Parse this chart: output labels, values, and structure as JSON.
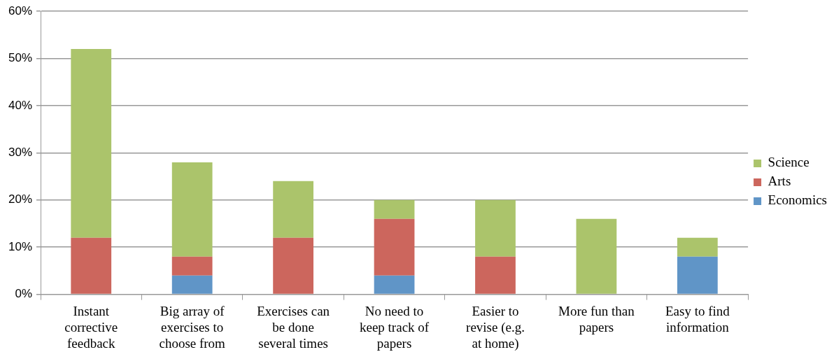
{
  "chart_data": {
    "type": "bar",
    "stacked": true,
    "categories": [
      "Instant corrective feedback",
      "Big array of exercises to choose from",
      "Exercises can be done several times",
      "No need to keep track of papers",
      "Easier to revise (e.g. at home)",
      "More fun than papers",
      "Easy to find information"
    ],
    "series": [
      {
        "name": "Economics",
        "color": "#6095c7",
        "values": [
          0,
          4,
          0,
          4,
          0,
          0,
          8
        ]
      },
      {
        "name": "Arts",
        "color": "#cc665d",
        "values": [
          12,
          4,
          12,
          12,
          8,
          0,
          0
        ]
      },
      {
        "name": "Science",
        "color": "#abc46b",
        "values": [
          40,
          20,
          12,
          4,
          12,
          16,
          4
        ]
      }
    ],
    "ylim": [
      0,
      60
    ],
    "yticks": [
      {
        "value": 0,
        "label": "0%"
      },
      {
        "value": 10,
        "label": "10%"
      },
      {
        "value": 20,
        "label": "20%"
      },
      {
        "value": 30,
        "label": "30%"
      },
      {
        "value": 40,
        "label": "40%"
      },
      {
        "value": 50,
        "label": "50%"
      },
      {
        "value": 60,
        "label": "60%"
      }
    ],
    "grid": "y",
    "legend": "right"
  }
}
